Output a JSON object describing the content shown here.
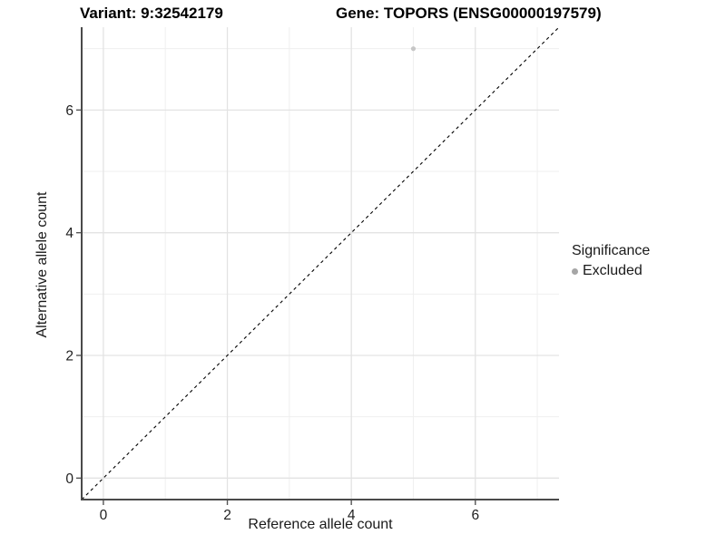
{
  "chart_data": {
    "type": "scatter",
    "title_left": "Variant: 9:32542179",
    "title_right": "Gene: TOPORS (ENSG00000197579)",
    "xlabel": "Reference allele count",
    "ylabel": "Alternative allele count",
    "xlim": [
      -0.35,
      7.35
    ],
    "ylim": [
      -0.35,
      7.35
    ],
    "x_ticks": [
      0,
      2,
      4,
      6
    ],
    "y_ticks": [
      0,
      2,
      4,
      6
    ],
    "x_minor": [
      1,
      3,
      5,
      7
    ],
    "y_minor": [
      1,
      3,
      5,
      7
    ],
    "grid": true,
    "identity_line": {
      "style": "dashed",
      "color": "#000000",
      "from": [
        -0.35,
        -0.35
      ],
      "to": [
        7.35,
        7.35
      ]
    },
    "series": [
      {
        "name": "Excluded",
        "color": "#c6c6c6",
        "points": [
          {
            "x": 5,
            "y": 7
          }
        ]
      }
    ],
    "legend": {
      "title": "Significance",
      "position": "right",
      "entries": [
        {
          "label": "Excluded",
          "color": "#a6a6a6"
        }
      ]
    },
    "colors": {
      "grid_major": "#e3e3e3",
      "grid_minor": "#efefef",
      "axis_line": "#4a4a4a",
      "tick_mark": "#555555",
      "tick_text": "#1f1f1f",
      "background": "#ffffff"
    }
  }
}
